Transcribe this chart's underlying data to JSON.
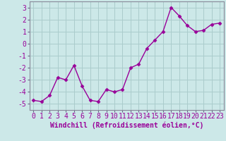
{
  "x": [
    0,
    1,
    2,
    3,
    4,
    5,
    6,
    7,
    8,
    9,
    10,
    11,
    12,
    13,
    14,
    15,
    16,
    17,
    18,
    19,
    20,
    21,
    22,
    23
  ],
  "y": [
    -4.7,
    -4.8,
    -4.3,
    -2.8,
    -3.0,
    -1.8,
    -3.5,
    -4.7,
    -4.8,
    -3.8,
    -4.0,
    -3.8,
    -2.0,
    -1.7,
    -0.4,
    0.3,
    1.0,
    3.0,
    2.3,
    1.5,
    1.0,
    1.1,
    1.6,
    1.7
  ],
  "line_color": "#990099",
  "marker": "D",
  "marker_size": 2.5,
  "bg_color": "#cce8e8",
  "grid_color": "#aacccc",
  "xlabel": "Windchill (Refroidissement éolien,°C)",
  "xlabel_fontsize": 7,
  "tick_fontsize": 7,
  "ylim": [
    -5.5,
    3.5
  ],
  "xlim": [
    -0.5,
    23.5
  ],
  "yticks": [
    -5,
    -4,
    -3,
    -2,
    -1,
    0,
    1,
    2,
    3
  ],
  "xticks": [
    0,
    1,
    2,
    3,
    4,
    5,
    6,
    7,
    8,
    9,
    10,
    11,
    12,
    13,
    14,
    15,
    16,
    17,
    18,
    19,
    20,
    21,
    22,
    23
  ]
}
